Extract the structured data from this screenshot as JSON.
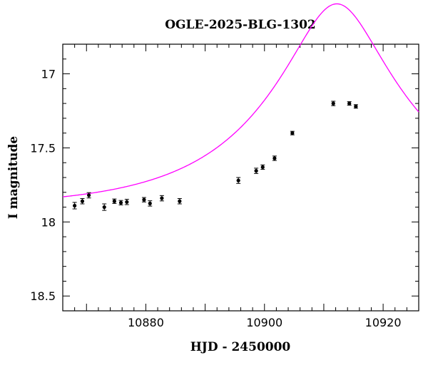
{
  "chart_data": {
    "type": "scatter",
    "title": "OGLE-2025-BLG-1302",
    "xlabel": "HJD - 2450000",
    "ylabel": "I magnitude",
    "xlim": [
      10866,
      10926
    ],
    "ylim": [
      18.6,
      16.8
    ],
    "y_inverted": true,
    "grid": false,
    "xticks": [
      10880,
      10900,
      10920
    ],
    "xtick_labels": [
      "10880",
      "10900",
      "10920"
    ],
    "yticks": [
      17,
      17.5,
      18,
      18.5
    ],
    "ytick_labels": [
      "17",
      "17.5",
      "18",
      "18.5"
    ],
    "colors": {
      "model": "#ff00ff",
      "points": "#000000",
      "axes": "#000000"
    },
    "series": [
      {
        "type": "scatter_errorbar",
        "x": [
          10868.0,
          10869.3,
          10870.4,
          10873.0,
          10874.7,
          10875.8,
          10876.8,
          10879.7,
          10880.7,
          10882.7,
          10885.7,
          10895.6,
          10898.6,
          10899.7,
          10901.7,
          10904.7,
          10911.6,
          10914.3,
          10915.4
        ],
        "y": [
          17.89,
          17.86,
          17.82,
          17.9,
          17.86,
          17.87,
          17.865,
          17.85,
          17.875,
          17.84,
          17.86,
          17.72,
          17.655,
          17.63,
          17.57,
          17.4,
          17.2,
          17.2,
          17.22
        ],
        "yerr": [
          0.022,
          0.018,
          0.018,
          0.022,
          0.015,
          0.015,
          0.018,
          0.015,
          0.018,
          0.018,
          0.018,
          0.02,
          0.018,
          0.015,
          0.015,
          0.012,
          0.015,
          0.012,
          0.012
        ]
      },
      {
        "type": "line",
        "model": "microlensing",
        "base_mag": 17.905,
        "t0": 10912.2,
        "tE": 24.7,
        "u0": 0.29
      }
    ]
  }
}
